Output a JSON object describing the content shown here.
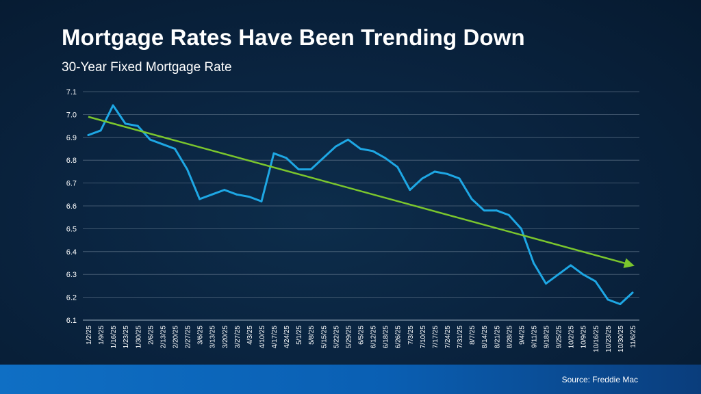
{
  "header": {
    "title": "Mortgage Rates Have Been Trending Down",
    "subtitle": "30-Year Fixed Mortgage Rate"
  },
  "footer": {
    "source": "Source: Freddie Mac"
  },
  "colors": {
    "line": "#1ea7e4",
    "trend": "#7bc62d",
    "grid": "#6b7f93",
    "text": "#ffffff"
  },
  "chart_data": {
    "type": "line",
    "title": "Mortgage Rates Have Been Trending Down",
    "subtitle": "30-Year Fixed Mortgage Rate",
    "xlabel": "",
    "ylabel": "",
    "ylim": [
      6.1,
      7.1
    ],
    "yticks": [
      "7.1",
      "7.0",
      "6.9",
      "6.8",
      "6.7",
      "6.6",
      "6.5",
      "6.4",
      "6.3",
      "6.2",
      "6.1"
    ],
    "grid": true,
    "legend": "none",
    "x": [
      "1/2/25",
      "1/9/25",
      "1/16/25",
      "1/23/25",
      "1/30/25",
      "2/6/25",
      "2/13/25",
      "2/20/25",
      "2/27/25",
      "3/6/25",
      "3/13/25",
      "3/20/25",
      "3/27/25",
      "4/3/25",
      "4/10/25",
      "4/17/25",
      "4/24/25",
      "5/1/25",
      "5/8/25",
      "5/15/25",
      "5/22/25",
      "5/29/25",
      "6/5/25",
      "6/12/25",
      "6/18/25",
      "6/26/25",
      "7/3/25",
      "7/10/25",
      "7/17/25",
      "7/24/25",
      "7/31/25",
      "8/7/25",
      "8/14/25",
      "8/21/25",
      "8/28/25",
      "9/4/25",
      "9/11/25",
      "9/18/25",
      "9/25/25",
      "10/2/25",
      "10/9/25",
      "10/16/25",
      "10/23/25",
      "10/30/25",
      "11/6/25"
    ],
    "series": [
      {
        "values": [
          6.91,
          6.93,
          7.04,
          6.96,
          6.95,
          6.89,
          6.87,
          6.85,
          6.76,
          6.63,
          6.65,
          6.67,
          6.65,
          6.64,
          6.62,
          6.83,
          6.81,
          6.76,
          6.76,
          6.81,
          6.86,
          6.89,
          6.85,
          6.84,
          6.81,
          6.77,
          6.67,
          6.72,
          6.75,
          6.74,
          6.72,
          6.63,
          6.58,
          6.58,
          6.56,
          6.5,
          6.35,
          6.26,
          6.3,
          6.34,
          6.3,
          6.27,
          6.19,
          6.17,
          6.22
        ]
      }
    ],
    "trend": {
      "from": [
        "1/2/25",
        6.99
      ],
      "to": [
        "11/6/25",
        6.34
      ],
      "arrow": true
    }
  }
}
